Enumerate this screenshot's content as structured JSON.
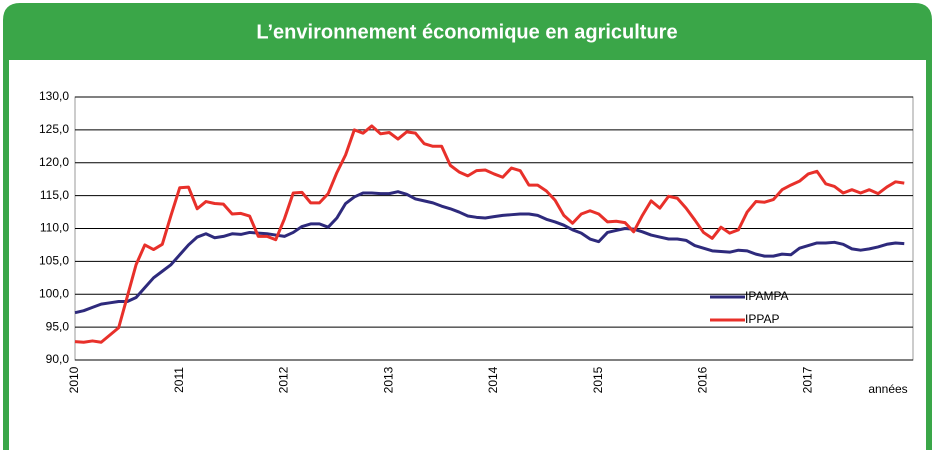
{
  "chart_data": {
    "type": "line",
    "title": "L’environnement économique en agriculture",
    "x_label": "années",
    "categories": [
      "2010",
      null,
      null,
      null,
      null,
      null,
      null,
      null,
      null,
      null,
      null,
      null,
      "2011",
      null,
      null,
      null,
      null,
      null,
      null,
      null,
      null,
      null,
      null,
      null,
      "2012",
      null,
      null,
      null,
      null,
      null,
      null,
      null,
      null,
      null,
      null,
      null,
      "2013",
      null,
      null,
      null,
      null,
      null,
      null,
      null,
      null,
      null,
      null,
      null,
      "2014",
      null,
      null,
      null,
      null,
      null,
      null,
      null,
      null,
      null,
      null,
      null,
      "2015",
      null,
      null,
      null,
      null,
      null,
      null,
      null,
      null,
      null,
      null,
      null,
      "2016",
      null,
      null,
      null,
      null,
      null,
      null,
      null,
      null,
      null,
      null,
      null,
      "2017",
      null,
      null,
      null,
      null,
      null,
      null,
      null,
      null,
      null,
      null,
      null
    ],
    "ylim": [
      90,
      130
    ],
    "yticks": [
      {
        "value": 90,
        "label": "90,0"
      },
      {
        "value": 95,
        "label": "95,0"
      },
      {
        "value": 100,
        "label": "100,0"
      },
      {
        "value": 105,
        "label": "105,0"
      },
      {
        "value": 110,
        "label": "110,0"
      },
      {
        "value": 115,
        "label": "115,0"
      },
      {
        "value": 120,
        "label": "120,0"
      },
      {
        "value": 125,
        "label": "125,0"
      },
      {
        "value": 130,
        "label": "130,0"
      }
    ],
    "grid": true,
    "series": [
      {
        "name": "IPAMPA",
        "color": "#2e2a7c",
        "values": [
          97.2,
          97.5,
          98,
          98.5,
          98.7,
          98.9,
          98.9,
          99.5,
          101,
          102.5,
          103.5,
          104.5,
          106,
          107.5,
          108.7,
          109.2,
          108.6,
          108.8,
          109.2,
          109.1,
          109.4,
          109.3,
          109.2,
          109.0,
          108.8,
          109.4,
          110.3,
          110.7,
          110.7,
          110.2,
          111.6,
          113.8,
          114.8,
          115.4,
          115.4,
          115.3,
          115.3,
          115.6,
          115.2,
          114.5,
          114.2,
          113.9,
          113.4,
          113.0,
          112.5,
          111.9,
          111.7,
          111.6,
          111.8,
          112.0,
          112.1,
          112.2,
          112.2,
          112.0,
          111.4,
          111.0,
          110.5,
          109.8,
          109.3,
          108.4,
          108.0,
          109.4,
          109.7,
          110.0,
          109.9,
          109.5,
          109.0,
          108.7,
          108.4,
          108.4,
          108.2,
          107.4,
          107.0,
          106.6,
          106.5,
          106.4,
          106.7,
          106.6,
          106.1,
          105.8,
          105.8,
          106.1,
          106.0,
          107.0,
          107.4,
          107.8,
          107.8,
          107.9,
          107.6,
          106.9,
          106.7,
          106.9,
          107.2,
          107.6,
          107.8,
          107.7
        ]
      },
      {
        "name": "IPPAP",
        "color": "#e8302a",
        "values": [
          92.8,
          92.7,
          92.9,
          92.7,
          93.8,
          94.9,
          99.7,
          104.5,
          107.5,
          106.8,
          107.6,
          112,
          116.2,
          116.3,
          113,
          114.1,
          113.8,
          113.7,
          112.2,
          112.3,
          111.9,
          108.8,
          108.8,
          108.3,
          111.5,
          115.4,
          115.5,
          113.9,
          113.9,
          115.3,
          118.5,
          121.2,
          125.0,
          124.5,
          125.6,
          124.4,
          124.6,
          123.6,
          124.7,
          124.5,
          122.9,
          122.5,
          122.5,
          119.6,
          118.6,
          118.0,
          118.8,
          118.9,
          118.3,
          117.8,
          119.2,
          118.8,
          116.6,
          116.6,
          115.7,
          114.3,
          112.0,
          110.8,
          112.2,
          112.7,
          112.2,
          111.0,
          111.1,
          110.9,
          109.5,
          112.0,
          114.2,
          113.1,
          114.9,
          114.6,
          113.1,
          111.3,
          109.4,
          108.5,
          110.2,
          109.3,
          109.8,
          112.5,
          114.1,
          114.0,
          114.4,
          115.9,
          116.6,
          117.2,
          118.3,
          118.7,
          116.8,
          116.4,
          115.4,
          115.9,
          115.4,
          115.9,
          115.3,
          116.3,
          117.1,
          116.9
        ]
      }
    ]
  }
}
